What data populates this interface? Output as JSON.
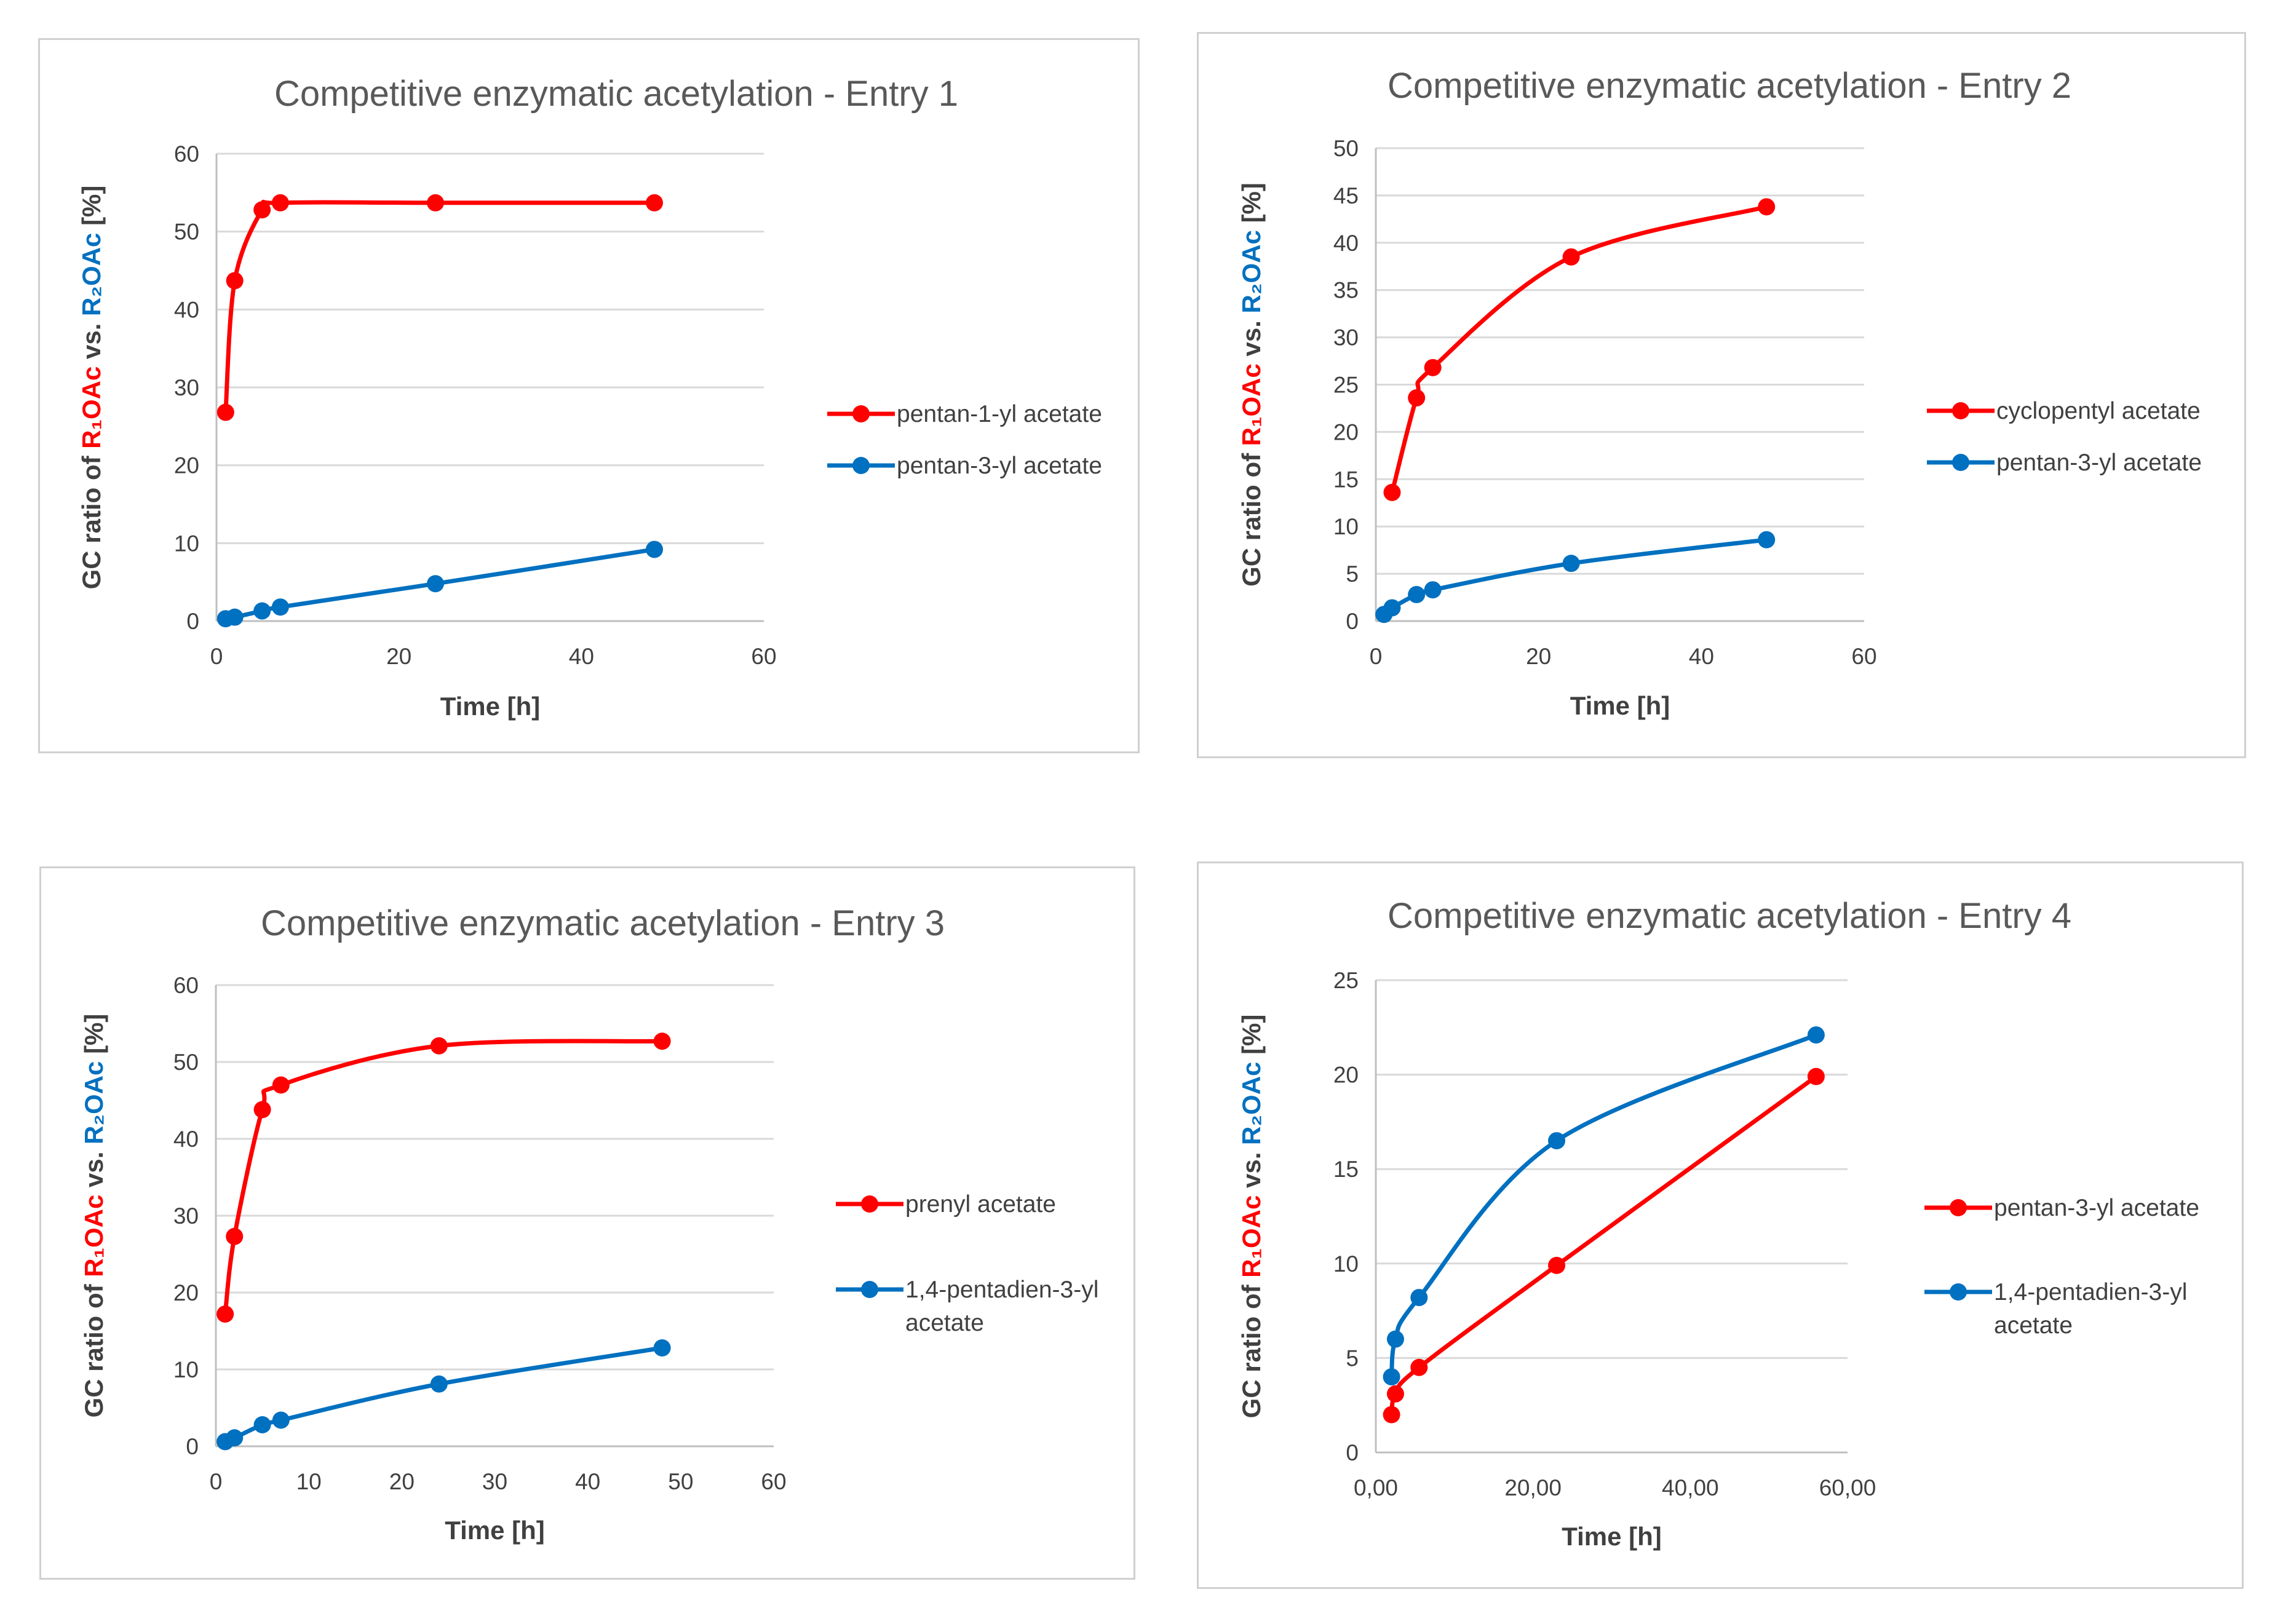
{
  "colors": {
    "red": "#ff0000",
    "blue": "#0070c0",
    "grid": "#d9d9d9",
    "axis": "#bfbfbf"
  },
  "chart_data": [
    {
      "type": "line",
      "title": "Competitive enzymatic acetylation - Entry 1",
      "xlabel": "Time [h]",
      "ylabel_parts": [
        "GC ratio of ",
        "R₁OAc",
        " vs. ",
        "R₂OAc",
        " [%]"
      ],
      "xlim": [
        0,
        60
      ],
      "ylim": [
        0,
        60
      ],
      "xticks": [
        0,
        20,
        40,
        60
      ],
      "yticks": [
        0,
        10,
        20,
        30,
        40,
        50,
        60
      ],
      "xtick_labels": [
        "0",
        "20",
        "40",
        "60"
      ],
      "ytick_labels": [
        "0",
        "10",
        "20",
        "30",
        "40",
        "50",
        "60"
      ],
      "series": [
        {
          "name": "pentan-1-yl acetate",
          "color": "red",
          "label_lines": [
            "pentan-1-yl acetate"
          ],
          "x": [
            1,
            2,
            5,
            7,
            24,
            48
          ],
          "y": [
            26.8,
            43.7,
            52.8,
            53.7,
            53.7,
            53.7
          ]
        },
        {
          "name": "pentan-3-yl acetate",
          "color": "blue",
          "label_lines": [
            "pentan-3-yl acetate"
          ],
          "x": [
            1,
            2,
            5,
            7,
            24,
            48
          ],
          "y": [
            0.3,
            0.5,
            1.3,
            1.8,
            4.8,
            9.2
          ]
        }
      ]
    },
    {
      "type": "line",
      "title": "Competitive enzymatic acetylation - Entry 2",
      "xlabel": "Time [h]",
      "ylabel_parts": [
        "GC ratio of ",
        "R₁OAc",
        " vs. ",
        "R₂OAc",
        " [%]"
      ],
      "xlim": [
        0,
        60
      ],
      "ylim": [
        0,
        50
      ],
      "xticks": [
        0,
        20,
        40,
        60
      ],
      "yticks": [
        0,
        5,
        10,
        15,
        20,
        25,
        30,
        35,
        40,
        45,
        50
      ],
      "xtick_labels": [
        "0",
        "20",
        "40",
        "60"
      ],
      "ytick_labels": [
        "0",
        "5",
        "10",
        "15",
        "20",
        "25",
        "30",
        "35",
        "40",
        "45",
        "50"
      ],
      "series": [
        {
          "name": "cyclopentyl acetate",
          "color": "red",
          "label_lines": [
            "cyclopentyl acetate"
          ],
          "x": [
            2,
            5,
            7,
            24,
            48
          ],
          "y": [
            13.6,
            23.6,
            26.8,
            38.5,
            43.8
          ]
        },
        {
          "name": "pentan-3-yl acetate",
          "color": "blue",
          "label_lines": [
            "pentan-3-yl acetate"
          ],
          "x": [
            1,
            2,
            5,
            7,
            24,
            48
          ],
          "y": [
            0.7,
            1.4,
            2.8,
            3.3,
            6.1,
            8.6
          ]
        }
      ]
    },
    {
      "type": "line",
      "title": "Competitive enzymatic acetylation - Entry 3",
      "xlabel": "Time [h]",
      "ylabel_parts": [
        "GC ratio of ",
        "R₁OAc",
        " vs. ",
        "R₂OAc",
        " [%]"
      ],
      "xlim": [
        0,
        60
      ],
      "ylim": [
        0,
        60
      ],
      "xticks": [
        0,
        10,
        20,
        30,
        40,
        50,
        60
      ],
      "yticks": [
        0,
        10,
        20,
        30,
        40,
        50,
        60
      ],
      "xtick_labels": [
        "0",
        "10",
        "20",
        "30",
        "40",
        "50",
        "60"
      ],
      "ytick_labels": [
        "0",
        "10",
        "20",
        "30",
        "40",
        "50",
        "60"
      ],
      "series": [
        {
          "name": "prenyl acetate",
          "color": "red",
          "label_lines": [
            "prenyl acetate"
          ],
          "x": [
            1,
            2,
            5,
            7,
            24,
            48
          ],
          "y": [
            17.2,
            27.3,
            43.8,
            47.0,
            52.1,
            52.7
          ]
        },
        {
          "name": "1,4-pentadien-3-yl acetate",
          "color": "blue",
          "label_lines": [
            "1,4-pentadien-3-yl",
            "acetate"
          ],
          "x": [
            1,
            2,
            5,
            7,
            24,
            48
          ],
          "y": [
            0.6,
            1.1,
            2.8,
            3.4,
            8.1,
            12.8
          ]
        }
      ]
    },
    {
      "type": "line",
      "title": "Competitive enzymatic acetylation - Entry 4",
      "xlabel": "Time [h]",
      "ylabel_parts": [
        "GC ratio of ",
        "R₁OAc",
        " vs. ",
        "R₂OAc",
        " [%]"
      ],
      "xlim": [
        0,
        60
      ],
      "ylim": [
        0,
        25
      ],
      "xticks": [
        0,
        20,
        40,
        60
      ],
      "yticks": [
        0,
        5,
        10,
        15,
        20,
        25
      ],
      "xtick_labels": [
        "0,00",
        "20,00",
        "40,00",
        "60,00"
      ],
      "ytick_labels": [
        "0",
        "5",
        "10",
        "15",
        "20",
        "25"
      ],
      "series": [
        {
          "name": "pentan-3-yl acetate",
          "color": "red",
          "label_lines": [
            "pentan-3-yl acetate"
          ],
          "x": [
            2,
            2.5,
            5.5,
            23,
            56
          ],
          "y": [
            2.0,
            3.1,
            4.5,
            9.9,
            19.9
          ]
        },
        {
          "name": "1,4-pentadien-3-yl acetate",
          "color": "blue",
          "label_lines": [
            "1,4-pentadien-3-yl",
            "acetate"
          ],
          "x": [
            2,
            2.5,
            5.5,
            23,
            56
          ],
          "y": [
            4.0,
            6.0,
            8.2,
            16.5,
            22.1
          ]
        }
      ]
    }
  ]
}
